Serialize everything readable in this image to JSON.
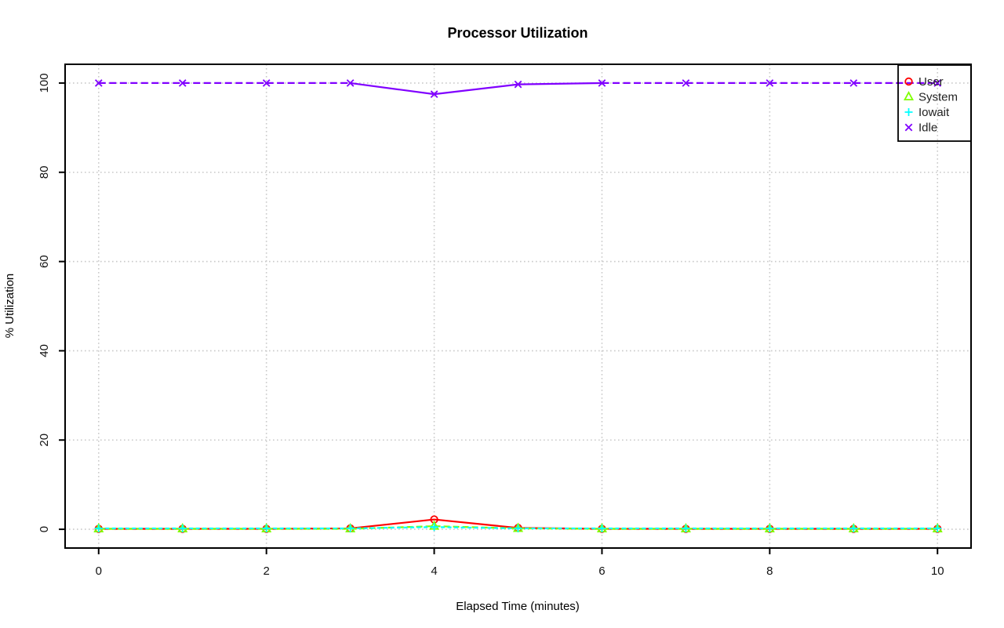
{
  "title": "Processor Utilization",
  "colors": {
    "background": "#ffffff",
    "axis": "#000000",
    "grid": "#c9c9c9",
    "user": "#ff0000",
    "system": "#80ff00",
    "iowait": "#00ffff",
    "idle": "#8000ff"
  },
  "chart_data": {
    "type": "line",
    "title": "Processor Utilization",
    "xlabel": "Elapsed Time (minutes)",
    "ylabel": "% Utilization",
    "x": [
      0,
      1,
      2,
      3,
      4,
      5,
      6,
      7,
      8,
      9,
      10
    ],
    "xticks": [
      0,
      2,
      4,
      6,
      8,
      10
    ],
    "yticks": [
      0,
      20,
      40,
      60,
      80,
      100
    ],
    "xlim": [
      -0.4,
      10.4
    ],
    "ylim": [
      -4.2,
      104.2
    ],
    "grid": "dotted",
    "series": [
      {
        "name": "User",
        "color": "#ff0000",
        "marker": "circle",
        "dash": "",
        "values": [
          0.1,
          0.1,
          0.1,
          0.2,
          2.2,
          0.3,
          0.1,
          0.1,
          0.1,
          0.1,
          0.1
        ]
      },
      {
        "name": "System",
        "color": "#80ff00",
        "marker": "triangle",
        "dash": "8 4",
        "values": [
          0.1,
          0.1,
          0.1,
          0.1,
          0.7,
          0.2,
          0.1,
          0.1,
          0.1,
          0.1,
          0.1
        ]
      },
      {
        "name": "Iowait",
        "color": "#00ffff",
        "marker": "plus",
        "dash": "5 3.5",
        "values": [
          0.2,
          0.2,
          0.2,
          0.2,
          0.5,
          0.2,
          0.2,
          0.2,
          0.2,
          0.2,
          0.2
        ]
      },
      {
        "name": "Idle",
        "color": "#8000ff",
        "marker": "x",
        "dash": "9 4.5",
        "solid_segments": [
          [
            3,
            4
          ],
          [
            4,
            5
          ],
          [
            5,
            6
          ]
        ],
        "values": [
          100,
          100,
          100,
          100,
          97.5,
          99.7,
          100,
          100,
          100,
          100,
          100
        ]
      }
    ],
    "legend": {
      "position": "topright",
      "entries": [
        "User",
        "System",
        "Iowait",
        "Idle"
      ]
    }
  }
}
